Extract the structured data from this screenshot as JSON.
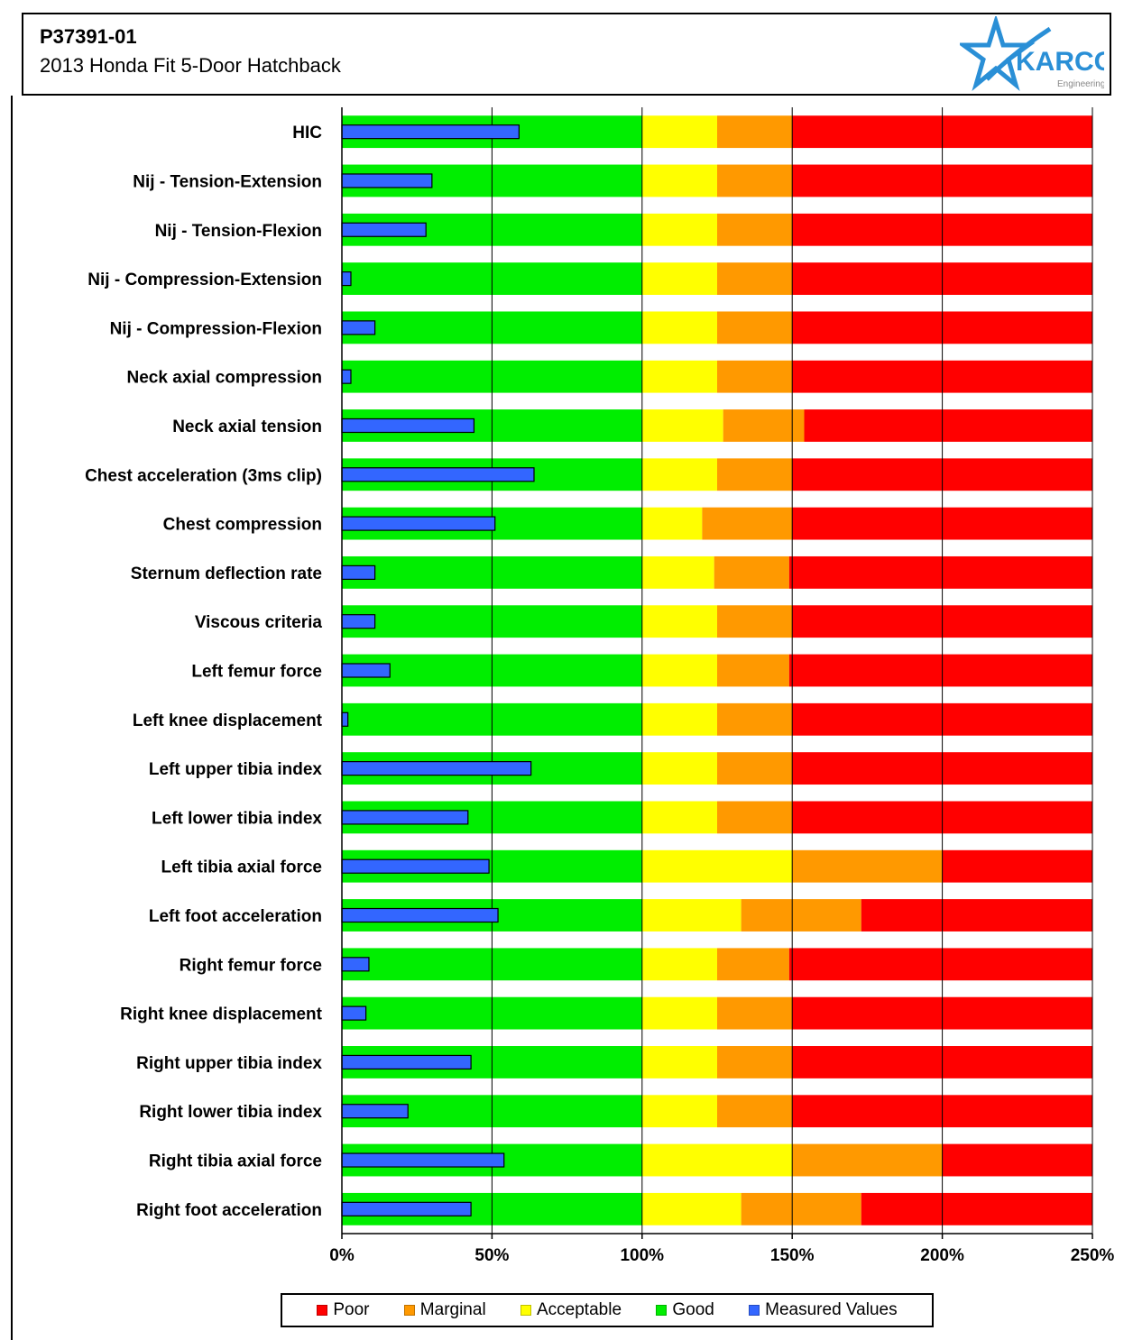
{
  "header": {
    "report_id": "P37391-01",
    "vehicle": "2013 Honda Fit 5-Door Hatchback",
    "logo_text": "KARCO",
    "logo_subtext": "Engineering"
  },
  "colors": {
    "poor": "#ff0000",
    "marginal": "#ff9900",
    "acceptable": "#ffff00",
    "good": "#00ee00",
    "measured": "#3366ff",
    "logo_blue": "#2a8fd6"
  },
  "legend": [
    {
      "label": "Poor",
      "color": "#ff0000"
    },
    {
      "label": "Marginal",
      "color": "#ff9900"
    },
    {
      "label": "Acceptable",
      "color": "#ffff00"
    },
    {
      "label": "Good",
      "color": "#00ee00"
    },
    {
      "label": "Measured Values",
      "color": "#3366ff"
    }
  ],
  "chart_data": {
    "type": "bar",
    "orientation": "horizontal",
    "xlim": [
      0,
      250
    ],
    "ticks": [
      0,
      50,
      100,
      150,
      200,
      250
    ],
    "tick_labels": [
      "0%",
      "50%",
      "100%",
      "150%",
      "200%",
      "250%"
    ],
    "grid": true,
    "legend_position": "bottom",
    "categories": [
      "HIC",
      "Nij - Tension-Extension",
      "Nij - Tension-Flexion",
      "Nij - Compression-Extension",
      "Nij - Compression-Flexion",
      "Neck axial compression",
      "Neck axial tension",
      "Chest acceleration (3ms clip)",
      "Chest compression",
      "Sternum deflection rate",
      "Viscous criteria",
      "Left femur force",
      "Left knee displacement",
      "Left upper tibia index",
      "Left lower tibia index",
      "Left tibia axial force",
      "Left foot acceleration",
      "Right femur force",
      "Right knee displacement",
      "Right upper tibia index",
      "Right lower tibia index",
      "Right tibia axial force",
      "Right foot acceleration"
    ],
    "series": [
      {
        "name": "Good",
        "values": [
          100,
          100,
          100,
          100,
          100,
          100,
          100,
          100,
          100,
          100,
          100,
          100,
          100,
          100,
          100,
          100,
          100,
          100,
          100,
          100,
          100,
          100,
          100
        ]
      },
      {
        "name": "Acceptable",
        "values": [
          25,
          25,
          25,
          25,
          25,
          25,
          27,
          25,
          20,
          24,
          25,
          25,
          25,
          25,
          25,
          50,
          33,
          25,
          25,
          25,
          25,
          50,
          33
        ]
      },
      {
        "name": "Marginal",
        "values": [
          25,
          25,
          25,
          25,
          25,
          25,
          27,
          25,
          30,
          25,
          25,
          24,
          25,
          25,
          25,
          50,
          40,
          24,
          25,
          25,
          25,
          50,
          40
        ]
      },
      {
        "name": "Poor",
        "values": [
          100,
          100,
          100,
          100,
          100,
          100,
          96,
          100,
          100,
          101,
          100,
          101,
          100,
          100,
          100,
          50,
          77,
          101,
          100,
          100,
          100,
          50,
          77
        ]
      },
      {
        "name": "Measured Values",
        "values": [
          59,
          30,
          28,
          3,
          11,
          3,
          44,
          64,
          51,
          11,
          11,
          16,
          2,
          63,
          42,
          49,
          52,
          9,
          8,
          43,
          22,
          54,
          43
        ]
      }
    ]
  }
}
